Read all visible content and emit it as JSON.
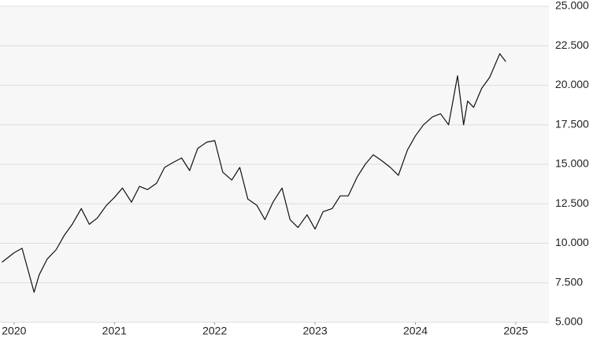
{
  "chart_data": {
    "type": "line",
    "x": [
      2019.88,
      2020.0,
      2020.08,
      2020.2,
      2020.25,
      2020.33,
      2020.42,
      2020.5,
      2020.58,
      2020.67,
      2020.75,
      2020.83,
      2020.92,
      2021.0,
      2021.08,
      2021.17,
      2021.25,
      2021.33,
      2021.42,
      2021.5,
      2021.58,
      2021.67,
      2021.75,
      2021.83,
      2021.92,
      2022.0,
      2022.08,
      2022.17,
      2022.25,
      2022.33,
      2022.42,
      2022.5,
      2022.58,
      2022.67,
      2022.75,
      2022.83,
      2022.92,
      2023.0,
      2023.08,
      2023.17,
      2023.25,
      2023.33,
      2023.42,
      2023.5,
      2023.58,
      2023.67,
      2023.75,
      2023.83,
      2023.92,
      2024.0,
      2024.08,
      2024.17,
      2024.25,
      2024.33,
      2024.42,
      2024.48,
      2024.52,
      2024.58,
      2024.66,
      2024.74,
      2024.84,
      2024.9
    ],
    "series": [
      {
        "color": "#111111",
        "values": [
          8800,
          9400,
          9680,
          6900,
          8000,
          9000,
          9600,
          10500,
          11200,
          12200,
          11200,
          11600,
          12400,
          12900,
          13500,
          12600,
          13600,
          13400,
          13800,
          14800,
          15100,
          15400,
          14600,
          16000,
          16400,
          16500,
          14500,
          14000,
          14800,
          12800,
          12400,
          11500,
          12600,
          13500,
          11500,
          11000,
          11800,
          10900,
          12000,
          12200,
          13000,
          13000,
          14200,
          15000,
          15600,
          15200,
          14800,
          14300,
          15900,
          16800,
          17500,
          18000,
          18200,
          17500,
          20600,
          17500,
          19000,
          18600,
          19800,
          20500,
          22000,
          21500
        ]
      }
    ],
    "xlim": [
      2019.86,
      2025.33
    ],
    "xticks": [
      2020,
      2021,
      2022,
      2023,
      2024,
      2025
    ],
    "ylim": [
      5000,
      25000
    ],
    "yticks": [
      {
        "value": 5000,
        "label": "5.000"
      },
      {
        "value": 7500,
        "label": "7.500"
      },
      {
        "value": 10000,
        "label": "10.000"
      },
      {
        "value": 12500,
        "label": "12.500"
      },
      {
        "value": 15000,
        "label": "15.000"
      },
      {
        "value": 17500,
        "label": "17.500"
      },
      {
        "value": 20000,
        "label": "20.000"
      },
      {
        "value": 22500,
        "label": "22.500"
      },
      {
        "value": 25000,
        "label": "25.000"
      }
    ],
    "grid": true
  }
}
